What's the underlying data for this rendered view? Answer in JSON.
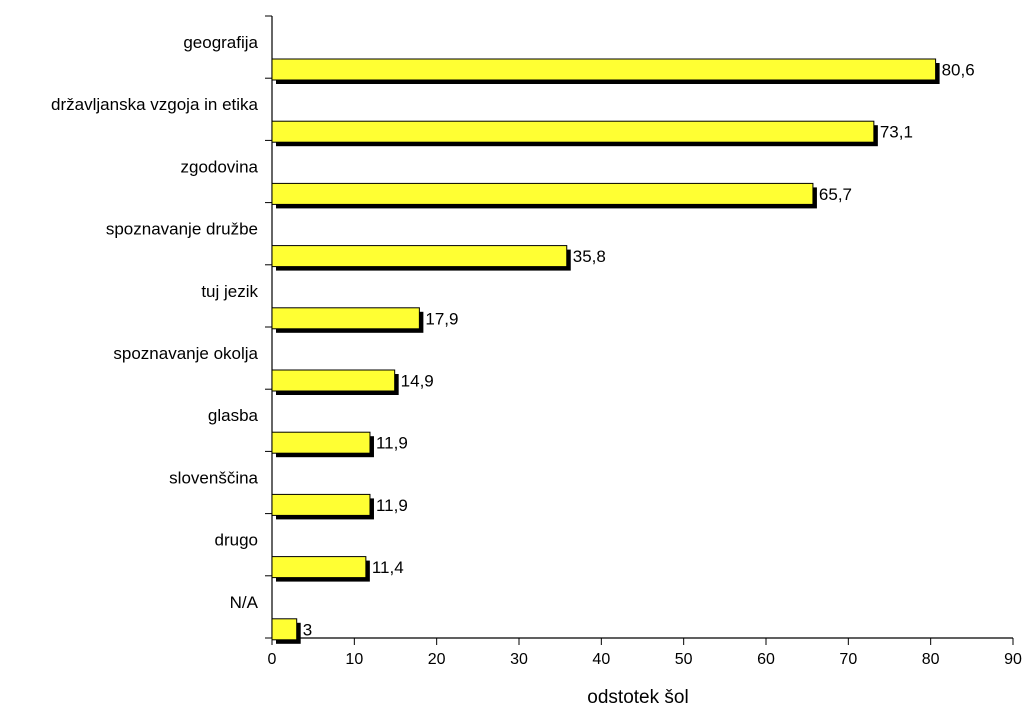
{
  "chart_data": {
    "type": "bar",
    "orientation": "horizontal",
    "categories": [
      "geografija",
      "državljanska vzgoja in etika",
      "zgodovina",
      "spoznavanje družbe",
      "tuj jezik",
      "spoznavanje okolja",
      "glasba",
      "slovenščina",
      "drugo",
      "N/A"
    ],
    "values": [
      80.6,
      73.1,
      65.7,
      35.8,
      17.9,
      14.9,
      11.9,
      11.9,
      11.4,
      3
    ],
    "value_labels": [
      "80,6",
      "73,1",
      "65,7",
      "35,8",
      "17,9",
      "14,9",
      "11,9",
      "11,9",
      "11,4",
      "3"
    ],
    "xlabel": "odstotek šol",
    "xlim": [
      0,
      90
    ],
    "xticks": [
      "0",
      "10",
      "20",
      "30",
      "40",
      "50",
      "60",
      "70",
      "80",
      "90"
    ],
    "grid": false,
    "legend": "none",
    "colors": {
      "bar_fill": "#ffff33",
      "bar_stroke": "#000000",
      "bar_shadow": "#000000"
    }
  }
}
